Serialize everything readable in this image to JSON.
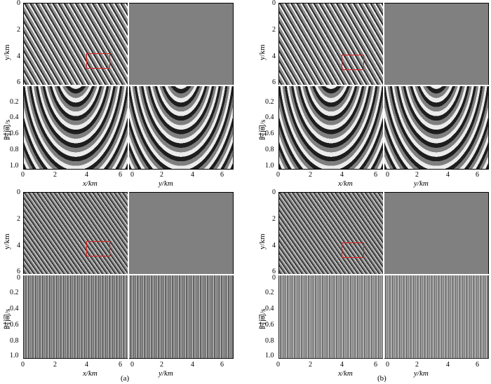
{
  "figure": {
    "panels": [
      {
        "id": "top-left",
        "map_red_box_visible": true,
        "y_ticks": [
          "0",
          "2",
          "4",
          "6"
        ],
        "t_ticks": [
          "0.2",
          "0.4",
          "0.6",
          "0.8",
          "1.0"
        ],
        "x_ticks": [
          "0",
          "2",
          "4",
          "6"
        ],
        "y2_ticks": [
          "0",
          "2",
          "4",
          "6"
        ],
        "y_label": "y/km",
        "t_label": "时间/s",
        "x_label": "x/km",
        "y2_label": "y/km",
        "caption": ""
      },
      {
        "id": "top-right",
        "map_red_box_visible": true,
        "y_ticks": [
          "0",
          "2",
          "4",
          "6"
        ],
        "t_ticks": [
          "0.2",
          "0.4",
          "0.6",
          "0.8",
          "1.0"
        ],
        "x_ticks": [
          "0",
          "2",
          "4",
          "6"
        ],
        "y2_ticks": [
          "0",
          "2",
          "4",
          "6"
        ],
        "y_label": "y/km",
        "t_label": "时间/s",
        "x_label": "x/km",
        "y2_label": "y/km",
        "caption": ""
      },
      {
        "id": "bottom-left",
        "map_red_box_visible": true,
        "y_ticks": [
          "0",
          "2",
          "4",
          "6"
        ],
        "t_ticks": [
          "0",
          "0.2",
          "0.4",
          "0.6",
          "0.8",
          "1.0"
        ],
        "x_ticks": [
          "0",
          "2",
          "4",
          "6"
        ],
        "y2_ticks": [
          "0",
          "2",
          "4",
          "6"
        ],
        "y_label": "y/km",
        "t_label": "时间/s",
        "x_label": "x/km",
        "y2_label": "y/km",
        "caption": "(a)"
      },
      {
        "id": "bottom-right",
        "map_red_box_visible": true,
        "y_ticks": [
          "0",
          "2",
          "4",
          "6"
        ],
        "t_ticks": [
          "0",
          "0.2",
          "0.4",
          "0.6",
          "0.8",
          "1.0"
        ],
        "x_ticks": [
          "0",
          "2",
          "4",
          "6"
        ],
        "y2_ticks": [
          "0",
          "2",
          "4",
          "6"
        ],
        "y_label": "y/km",
        "t_label": "时间/s",
        "x_label": "x/km",
        "y2_label": "y/km",
        "caption": "(b)"
      }
    ],
    "colors": {
      "background": "#7f7f7f",
      "highlight_box": "#e02020",
      "divider": "#ffffff"
    }
  }
}
